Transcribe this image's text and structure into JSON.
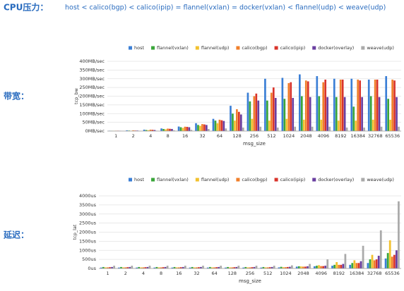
{
  "header": {
    "label": "CPU压力：",
    "text": "host < calico(bgp) < calico(ipip) = flannel(vxlan) = docker(vxlan) < flannel(udp) < weave(udp)"
  },
  "row_labels": [
    "带宽：",
    "延迟："
  ],
  "chart_data": [
    {
      "type": "bar",
      "y_label": "tcp_bw",
      "x_label": "msg_size",
      "categories": [
        "1",
        "2",
        "4",
        "8",
        "16",
        "32",
        "64",
        "128",
        "256",
        "512",
        "1024",
        "2048",
        "4096",
        "8192",
        "16384",
        "32768",
        "65536"
      ],
      "ylim": [
        0,
        400
      ],
      "yticks": [
        {
          "value": 0,
          "label": "0MB/sec"
        },
        {
          "value": 50,
          "label": "50MB/sec"
        },
        {
          "value": 100,
          "label": "100MB/sec"
        },
        {
          "value": 150,
          "label": "150MB/sec"
        },
        {
          "value": 200,
          "label": "200MB/sec"
        },
        {
          "value": 250,
          "label": "250MB/sec"
        },
        {
          "value": 300,
          "label": "300MB/sec"
        },
        {
          "value": 350,
          "label": "350MB/sec"
        },
        {
          "value": 400,
          "label": "400MB/sec"
        }
      ],
      "grid": true,
      "series": [
        {
          "name": "host",
          "color": "#3b7fd6",
          "values": [
            2,
            4,
            8,
            15,
            26,
            45,
            70,
            145,
            220,
            300,
            305,
            325,
            315,
            300,
            300,
            295,
            315
          ]
        },
        {
          "name": "flannel(vxlan)",
          "color": "#3aa63a",
          "values": [
            1,
            3,
            6,
            12,
            22,
            35,
            60,
            100,
            170,
            175,
            185,
            200,
            200,
            195,
            140,
            200,
            185
          ]
        },
        {
          "name": "flannel(udp)",
          "color": "#f2c12e",
          "values": [
            1,
            2,
            5,
            10,
            18,
            30,
            45,
            60,
            70,
            60,
            70,
            65,
            65,
            60,
            60,
            65,
            65
          ]
        },
        {
          "name": "calico(bgp)",
          "color": "#f07f2a",
          "values": [
            2,
            4,
            8,
            14,
            25,
            40,
            65,
            125,
            200,
            220,
            275,
            290,
            280,
            295,
            295,
            295,
            295
          ]
        },
        {
          "name": "calico(ipip)",
          "color": "#d9342b",
          "values": [
            2,
            3,
            7,
            13,
            24,
            38,
            62,
            110,
            215,
            250,
            280,
            285,
            295,
            295,
            290,
            295,
            290
          ]
        },
        {
          "name": "docker(overlay)",
          "color": "#6a3fa0",
          "values": [
            1,
            3,
            6,
            12,
            22,
            35,
            58,
            95,
            175,
            190,
            190,
            195,
            195,
            195,
            195,
            195,
            195
          ]
        },
        {
          "name": "weave(udp)",
          "color": "#aaaaaa",
          "values": [
            0.5,
            1,
            2,
            4,
            7,
            12,
            15,
            20,
            25,
            20,
            25,
            25,
            25,
            20,
            20,
            25,
            25
          ]
        }
      ]
    },
    {
      "type": "bar",
      "y_label": "tcp_lat",
      "x_label": "msg_size",
      "categories": [
        "1",
        "2",
        "4",
        "8",
        "16",
        "32",
        "64",
        "128",
        "256",
        "512",
        "1024",
        "2048",
        "4096",
        "8192",
        "16384",
        "32768",
        "65536"
      ],
      "ylim": [
        0,
        4000
      ],
      "yticks": [
        {
          "value": 0,
          "label": "0us"
        },
        {
          "value": 500,
          "label": "500us"
        },
        {
          "value": 1000,
          "label": "1000us"
        },
        {
          "value": 1500,
          "label": "1500us"
        },
        {
          "value": 2000,
          "label": "2000us"
        },
        {
          "value": 2500,
          "label": "2500us"
        },
        {
          "value": 3000,
          "label": "3000us"
        },
        {
          "value": 3500,
          "label": "3500us"
        },
        {
          "value": 4000,
          "label": "4000us"
        }
      ],
      "grid": true,
      "series": [
        {
          "name": "host",
          "color": "#3b7fd6",
          "values": [
            50,
            50,
            50,
            50,
            50,
            50,
            50,
            50,
            50,
            50,
            60,
            100,
            120,
            150,
            200,
            300,
            550
          ]
        },
        {
          "name": "flannel(vxlan)",
          "color": "#3aa63a",
          "values": [
            80,
            80,
            80,
            80,
            80,
            80,
            80,
            80,
            80,
            80,
            90,
            120,
            150,
            200,
            300,
            500,
            850
          ]
        },
        {
          "name": "flannel(udp)",
          "color": "#f2c12e",
          "values": [
            60,
            60,
            60,
            60,
            60,
            60,
            60,
            60,
            60,
            60,
            70,
            110,
            180,
            350,
            450,
            750,
            1550
          ]
        },
        {
          "name": "calico(bgp)",
          "color": "#f07f2a",
          "values": [
            60,
            60,
            60,
            60,
            60,
            60,
            60,
            60,
            60,
            60,
            70,
            100,
            130,
            200,
            300,
            450,
            650
          ]
        },
        {
          "name": "calico(ipip)",
          "color": "#d9342b",
          "values": [
            70,
            70,
            70,
            70,
            70,
            70,
            70,
            70,
            70,
            70,
            80,
            100,
            130,
            200,
            300,
            500,
            750
          ]
        },
        {
          "name": "docker(overlay)",
          "color": "#6a3fa0",
          "values": [
            80,
            80,
            80,
            80,
            80,
            80,
            80,
            80,
            80,
            80,
            90,
            120,
            150,
            250,
            400,
            700,
            1000
          ]
        },
        {
          "name": "weave(udp)",
          "color": "#aaaaaa",
          "values": [
            150,
            150,
            150,
            150,
            150,
            150,
            150,
            150,
            150,
            150,
            170,
            250,
            500,
            800,
            1250,
            2100,
            3700
          ]
        }
      ]
    }
  ]
}
